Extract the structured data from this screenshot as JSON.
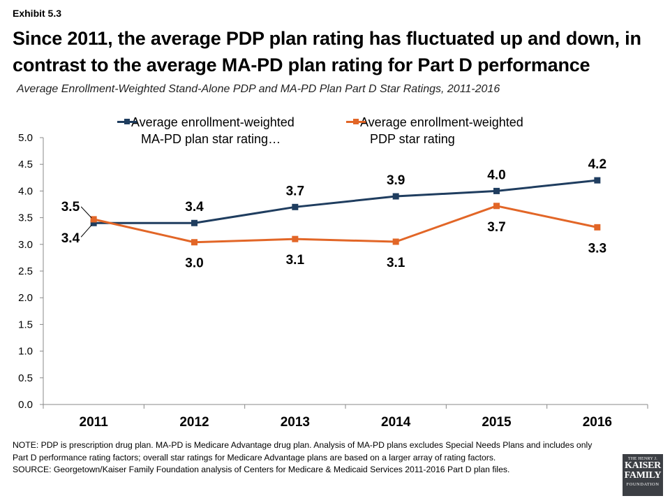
{
  "header": {
    "exhibit": "Exhibit 5.3",
    "title": "Since 2011, the average PDP plan rating has fluctuated up and down, in contrast to the average MA-PD plan rating for Part D performance",
    "subtitle": "Average Enrollment-Weighted Stand-Alone PDP and MA-PD Plan Part D Star Ratings, 2011-2016"
  },
  "chart_data": {
    "type": "line",
    "categories": [
      "2011",
      "2012",
      "2013",
      "2014",
      "2015",
      "2016"
    ],
    "ylim": [
      0,
      5.0
    ],
    "ytick_labels": [
      "0.0",
      "0.5",
      "1.0",
      "1.5",
      "2.0",
      "2.5",
      "3.0",
      "3.5",
      "4.0",
      "4.5",
      "5.0"
    ],
    "grid": false,
    "legend_position": "top",
    "series": [
      {
        "name_line1": "Average enrollment-weighted",
        "name_line2": "MA-PD plan star rating…",
        "color": "#1f3d5f",
        "values": [
          3.4,
          3.4,
          3.7,
          3.9,
          4.0,
          4.2
        ],
        "labels": [
          "3.4",
          "3.4",
          "3.7",
          "3.9",
          "4.0",
          "4.2"
        ]
      },
      {
        "name_line1": "Average enrollment-weighted",
        "name_line2": "PDP star rating",
        "color": "#e26627",
        "values": [
          3.47,
          3.04,
          3.1,
          3.05,
          3.72,
          3.32
        ],
        "labels": [
          "3.5",
          "3.0",
          "3.1",
          "3.1",
          "3.7",
          "3.3"
        ]
      }
    ]
  },
  "notes": {
    "note": "NOTE: PDP is prescription drug plan. MA-PD is Medicare Advantage drug plan. Analysis of MA-PD plans excludes Special Needs Plans and includes only Part D performance rating factors; overall star ratings for Medicare Advantage plans are based on a larger array of rating factors.",
    "source": "SOURCE: Georgetown/Kaiser Family Foundation analysis of Centers for Medicare & Medicaid Services 2011-2016 Part D plan files."
  },
  "logo": {
    "line1": "THE HENRY J.",
    "line2": "KAISER",
    "line3": "FAMILY",
    "line4": "FOUNDATION"
  }
}
